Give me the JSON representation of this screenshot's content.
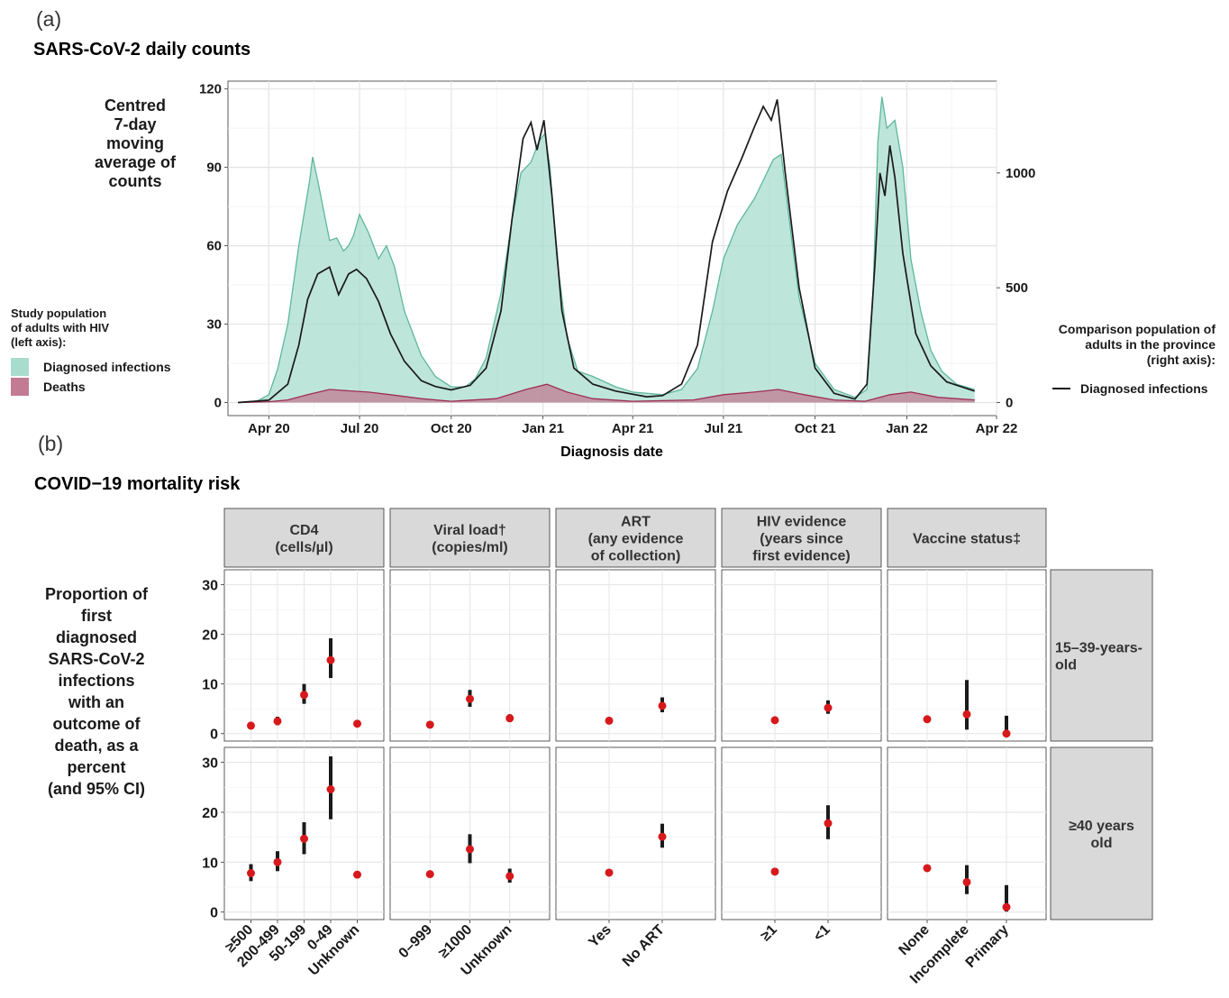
{
  "panel_a": {
    "label": "(a)",
    "title": "SARS-CoV-2 daily counts",
    "left_axis_title": [
      "Centred",
      "7-day",
      "moving",
      "average of",
      "counts"
    ],
    "x_axis_title": "Diagnosis date",
    "legend_left": {
      "title": [
        "Study population",
        "of adults with HIV",
        "(left axis):"
      ],
      "items": [
        {
          "label": "Diagnosed infections",
          "color": "#a8dccd"
        },
        {
          "label": "Deaths",
          "color": "#c27b92"
        }
      ]
    },
    "legend_right": {
      "title": [
        "Comparison population of",
        "adults in the province",
        "(right axis):"
      ],
      "items": [
        {
          "label": "Diagnosed infections",
          "color": "#1a1a1a"
        }
      ]
    }
  },
  "panel_b": {
    "label": "(b)",
    "title": "COVID−19 mortality risk",
    "y_axis_title": [
      "Proportion of",
      "first",
      "diagnosed",
      "SARS-CoV-2",
      "infections",
      "with an",
      "outcome of",
      "death, as a",
      "percent",
      "(and 95% CI)"
    ]
  },
  "chart_data": [
    {
      "type": "area",
      "title": "SARS-CoV-2 daily counts",
      "xlabel": "Diagnosis date",
      "ylabel": "Centred 7-day moving average of counts",
      "x_ticks": [
        "Apr 20",
        "Jul 20",
        "Oct 20",
        "Jan 21",
        "Apr 21",
        "Jul 21",
        "Oct 21",
        "Jan 22",
        "Apr 22"
      ],
      "x_range": [
        "2020-02-20",
        "2022-04-01"
      ],
      "y_left": {
        "ticks": [
          0,
          30,
          60,
          90,
          120
        ],
        "lim": [
          -5,
          123
        ]
      },
      "y_right": {
        "ticks": [
          0,
          500,
          1000
        ],
        "lim": [
          -57,
          1400
        ]
      },
      "series": [
        {
          "name": "Diagnosed infections",
          "axis": "left",
          "style": "area",
          "color": "#a8dccd",
          "points": [
            [
              "2020-03-01",
              0
            ],
            [
              "2020-03-20",
              0.5
            ],
            [
              "2020-04-01",
              3
            ],
            [
              "2020-04-10",
              13
            ],
            [
              "2020-04-20",
              30
            ],
            [
              "2020-05-01",
              60
            ],
            [
              "2020-05-12",
              85
            ],
            [
              "2020-05-15",
              94
            ],
            [
              "2020-05-20",
              85
            ],
            [
              "2020-06-01",
              62
            ],
            [
              "2020-06-08",
              63
            ],
            [
              "2020-06-15",
              58
            ],
            [
              "2020-06-20",
              60
            ],
            [
              "2020-06-25",
              64
            ],
            [
              "2020-07-01",
              72
            ],
            [
              "2020-07-10",
              65
            ],
            [
              "2020-07-20",
              55
            ],
            [
              "2020-07-28",
              60
            ],
            [
              "2020-08-05",
              52
            ],
            [
              "2020-08-15",
              35
            ],
            [
              "2020-09-01",
              18
            ],
            [
              "2020-09-15",
              10
            ],
            [
              "2020-10-01",
              6
            ],
            [
              "2020-10-15",
              6
            ],
            [
              "2020-10-25",
              9
            ],
            [
              "2020-11-05",
              17
            ],
            [
              "2020-11-20",
              42
            ],
            [
              "2020-12-01",
              70
            ],
            [
              "2020-12-10",
              88
            ],
            [
              "2020-12-20",
              92
            ],
            [
              "2020-12-28",
              100
            ],
            [
              "2021-01-03",
              103
            ],
            [
              "2021-01-08",
              90
            ],
            [
              "2021-01-15",
              55
            ],
            [
              "2021-01-25",
              25
            ],
            [
              "2021-02-05",
              12
            ],
            [
              "2021-02-20",
              10
            ],
            [
              "2021-03-15",
              6
            ],
            [
              "2021-04-01",
              4
            ],
            [
              "2021-05-01",
              3
            ],
            [
              "2021-05-20",
              5
            ],
            [
              "2021-06-05",
              13
            ],
            [
              "2021-06-20",
              35
            ],
            [
              "2021-07-01",
              55
            ],
            [
              "2021-07-15",
              68
            ],
            [
              "2021-08-01",
              78
            ],
            [
              "2021-08-10",
              85
            ],
            [
              "2021-08-20",
              93
            ],
            [
              "2021-08-28",
              95
            ],
            [
              "2021-09-05",
              70
            ],
            [
              "2021-09-15",
              40
            ],
            [
              "2021-10-01",
              15
            ],
            [
              "2021-10-20",
              5
            ],
            [
              "2021-11-10",
              2
            ],
            [
              "2021-11-22",
              5
            ],
            [
              "2021-11-28",
              40
            ],
            [
              "2021-12-03",
              100
            ],
            [
              "2021-12-07",
              117
            ],
            [
              "2021-12-12",
              105
            ],
            [
              "2021-12-20",
              108
            ],
            [
              "2021-12-28",
              90
            ],
            [
              "2022-01-05",
              55
            ],
            [
              "2022-01-15",
              35
            ],
            [
              "2022-01-25",
              20
            ],
            [
              "2022-02-05",
              12
            ],
            [
              "2022-02-20",
              7
            ],
            [
              "2022-03-10",
              5
            ]
          ]
        },
        {
          "name": "Deaths",
          "axis": "left",
          "style": "area",
          "color": "#c27b92",
          "points": [
            [
              "2020-03-01",
              0
            ],
            [
              "2020-04-01",
              0.3
            ],
            [
              "2020-04-20",
              1
            ],
            [
              "2020-05-10",
              3
            ],
            [
              "2020-06-01",
              5
            ],
            [
              "2020-06-20",
              4.5
            ],
            [
              "2020-07-10",
              4
            ],
            [
              "2020-08-01",
              3
            ],
            [
              "2020-09-01",
              1.5
            ],
            [
              "2020-10-01",
              0.5
            ],
            [
              "2020-11-15",
              1.5
            ],
            [
              "2020-12-15",
              5
            ],
            [
              "2021-01-05",
              7
            ],
            [
              "2021-01-25",
              4
            ],
            [
              "2021-02-20",
              1.5
            ],
            [
              "2021-04-01",
              0.5
            ],
            [
              "2021-06-01",
              1
            ],
            [
              "2021-07-01",
              3
            ],
            [
              "2021-08-01",
              4
            ],
            [
              "2021-08-25",
              5
            ],
            [
              "2021-09-20",
              3
            ],
            [
              "2021-10-20",
              1
            ],
            [
              "2021-11-20",
              0.5
            ],
            [
              "2021-12-15",
              3
            ],
            [
              "2022-01-05",
              4
            ],
            [
              "2022-02-01",
              2
            ],
            [
              "2022-03-10",
              1
            ]
          ]
        },
        {
          "name": "Diagnosed infections",
          "axis": "right",
          "style": "line",
          "color": "#1a1a1a",
          "points": [
            [
              "2020-03-01",
              0
            ],
            [
              "2020-04-01",
              10
            ],
            [
              "2020-04-20",
              80
            ],
            [
              "2020-05-01",
              250
            ],
            [
              "2020-05-10",
              450
            ],
            [
              "2020-05-20",
              560
            ],
            [
              "2020-06-01",
              590
            ],
            [
              "2020-06-10",
              470
            ],
            [
              "2020-06-20",
              560
            ],
            [
              "2020-06-28",
              580
            ],
            [
              "2020-07-08",
              540
            ],
            [
              "2020-07-20",
              440
            ],
            [
              "2020-08-01",
              300
            ],
            [
              "2020-08-15",
              180
            ],
            [
              "2020-09-01",
              95
            ],
            [
              "2020-09-15",
              70
            ],
            [
              "2020-10-01",
              55
            ],
            [
              "2020-10-20",
              75
            ],
            [
              "2020-11-05",
              150
            ],
            [
              "2020-11-20",
              400
            ],
            [
              "2020-12-01",
              800
            ],
            [
              "2020-12-12",
              1150
            ],
            [
              "2020-12-20",
              1220
            ],
            [
              "2020-12-26",
              1100
            ],
            [
              "2021-01-02",
              1230
            ],
            [
              "2021-01-10",
              900
            ],
            [
              "2021-01-20",
              400
            ],
            [
              "2021-02-01",
              150
            ],
            [
              "2021-02-20",
              80
            ],
            [
              "2021-03-15",
              50
            ],
            [
              "2021-04-15",
              25
            ],
            [
              "2021-05-01",
              30
            ],
            [
              "2021-05-20",
              80
            ],
            [
              "2021-06-05",
              250
            ],
            [
              "2021-06-20",
              700
            ],
            [
              "2021-07-05",
              920
            ],
            [
              "2021-07-20",
              1070
            ],
            [
              "2021-08-01",
              1200
            ],
            [
              "2021-08-10",
              1290
            ],
            [
              "2021-08-18",
              1230
            ],
            [
              "2021-08-24",
              1320
            ],
            [
              "2021-09-01",
              1000
            ],
            [
              "2021-09-15",
              500
            ],
            [
              "2021-10-01",
              150
            ],
            [
              "2021-10-20",
              40
            ],
            [
              "2021-11-10",
              15
            ],
            [
              "2021-11-22",
              80
            ],
            [
              "2021-11-30",
              600
            ],
            [
              "2021-12-05",
              1000
            ],
            [
              "2021-12-10",
              900
            ],
            [
              "2021-12-15",
              1120
            ],
            [
              "2021-12-20",
              980
            ],
            [
              "2021-12-28",
              650
            ],
            [
              "2022-01-10",
              300
            ],
            [
              "2022-01-25",
              160
            ],
            [
              "2022-02-10",
              90
            ],
            [
              "2022-03-10",
              50
            ]
          ]
        }
      ]
    },
    {
      "type": "scatter",
      "title": "COVID−19 mortality risk",
      "ylabel": "Proportion of first diagnosed SARS-CoV-2 infections with an outcome of death, as a percent (and 95% CI)",
      "ylim": [
        -1.5,
        33
      ],
      "y_ticks": [
        0,
        10,
        20,
        30
      ],
      "rows": [
        "15–39-years-old",
        "≥40 years old"
      ],
      "facets": [
        {
          "title": [
            "CD4",
            "(cells/µl)"
          ],
          "categories": [
            "≥500",
            "200-499",
            "50-199",
            "0-49",
            "Unknown"
          ],
          "values": [
            [
              {
                "est": 1.6,
                "lo": 1.0,
                "hi": 2.3
              },
              {
                "est": 2.5,
                "lo": 1.7,
                "hi": 3.4
              },
              {
                "est": 7.8,
                "lo": 6.0,
                "hi": 10.0
              },
              {
                "est": 14.8,
                "lo": 11.2,
                "hi": 19.2
              },
              {
                "est": 2.0,
                "lo": 1.6,
                "hi": 2.4
              }
            ],
            [
              {
                "est": 7.8,
                "lo": 6.2,
                "hi": 9.6
              },
              {
                "est": 10.0,
                "lo": 8.2,
                "hi": 12.2
              },
              {
                "est": 14.7,
                "lo": 11.6,
                "hi": 18.0
              },
              {
                "est": 24.6,
                "lo": 18.6,
                "hi": 31.2
              },
              {
                "est": 7.5,
                "lo": 7.0,
                "hi": 8.0
              }
            ]
          ]
        },
        {
          "title": [
            "Viral load†",
            "(copies/ml)"
          ],
          "categories": [
            "0–999",
            "≥1000",
            "Unknown"
          ],
          "values": [
            [
              {
                "est": 1.8,
                "lo": 1.5,
                "hi": 2.1
              },
              {
                "est": 7.0,
                "lo": 5.4,
                "hi": 8.8
              },
              {
                "est": 3.1,
                "lo": 2.3,
                "hi": 3.9
              }
            ],
            [
              {
                "est": 7.6,
                "lo": 7.2,
                "hi": 8.1
              },
              {
                "est": 12.6,
                "lo": 9.8,
                "hi": 15.6
              },
              {
                "est": 7.2,
                "lo": 5.9,
                "hi": 8.7
              }
            ]
          ]
        },
        {
          "title": [
            "ART",
            "(any evidence",
            "of collection)"
          ],
          "categories": [
            "Yes",
            "No ART"
          ],
          "values": [
            [
              {
                "est": 2.6,
                "lo": 2.3,
                "hi": 2.9
              },
              {
                "est": 5.6,
                "lo": 4.3,
                "hi": 7.3
              }
            ],
            [
              {
                "est": 7.9,
                "lo": 7.5,
                "hi": 8.3
              },
              {
                "est": 15.1,
                "lo": 12.9,
                "hi": 17.7
              }
            ]
          ]
        },
        {
          "title": [
            "HIV evidence",
            "(years since",
            "first evidence)"
          ],
          "categories": [
            "≥1",
            "<1"
          ],
          "values": [
            [
              {
                "est": 2.7,
                "lo": 2.4,
                "hi": 3.0
              },
              {
                "est": 5.2,
                "lo": 4.0,
                "hi": 6.7
              }
            ],
            [
              {
                "est": 8.1,
                "lo": 7.7,
                "hi": 8.5
              },
              {
                "est": 17.8,
                "lo": 14.6,
                "hi": 21.4
              }
            ]
          ]
        },
        {
          "title": [
            "Vaccine status‡"
          ],
          "categories": [
            "None",
            "Incomplete",
            "Primary"
          ],
          "values": [
            [
              {
                "est": 2.9,
                "lo": 2.6,
                "hi": 3.2
              },
              {
                "est": 3.9,
                "lo": 0.8,
                "hi": 10.8
              },
              {
                "est": 0.0,
                "lo": 0.0,
                "hi": 3.6
              }
            ],
            [
              {
                "est": 8.8,
                "lo": 8.3,
                "hi": 9.3
              },
              {
                "est": 6.0,
                "lo": 3.6,
                "hi": 9.4
              },
              {
                "est": 1.0,
                "lo": 0.1,
                "hi": 5.4
              }
            ]
          ]
        }
      ]
    }
  ]
}
